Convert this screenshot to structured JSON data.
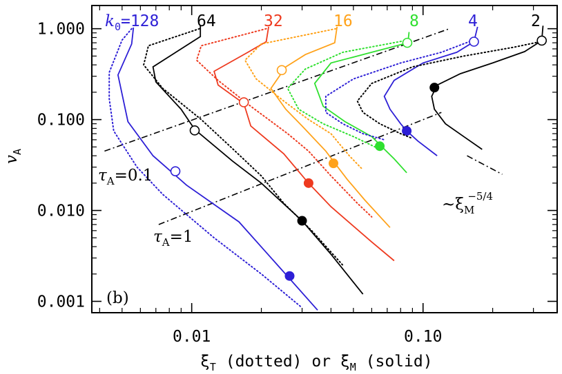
{
  "chart_data": {
    "type": "line",
    "xlabel": {
      "main": "ξ",
      "sub": "T",
      "rest": " (dotted) or ξ",
      "sub2": "M",
      "rest2": " (solid)"
    },
    "ylabel": {
      "main": "v",
      "sub": "A"
    },
    "x_scale": "log",
    "y_scale": "log",
    "xlim": [
      0.0037,
      0.38
    ],
    "ylim": [
      0.00075,
      1.8
    ],
    "x_ticks": [
      {
        "value": 0.01,
        "label": "0.01"
      },
      {
        "value": 0.1,
        "label": "0.10"
      }
    ],
    "y_ticks": [
      {
        "value": 0.001,
        "label": "0.001"
      },
      {
        "value": 0.01,
        "label": "0.010"
      },
      {
        "value": 0.1,
        "label": "0.100"
      },
      {
        "value": 1.0,
        "label": "1.000"
      }
    ],
    "panel_label": "(b)",
    "k_prefix": {
      "main": "k",
      "sub": "0",
      "eq": "="
    },
    "series": [
      {
        "k": "128",
        "color": "#2d1fd6",
        "solid": [
          [
            0.0056,
            1.03
          ],
          [
            0.0055,
            0.68
          ],
          [
            0.0048,
            0.31
          ],
          [
            0.0053,
            0.095
          ],
          [
            0.0068,
            0.04
          ],
          [
            0.0095,
            0.019
          ],
          [
            0.016,
            0.0075
          ],
          [
            0.025,
            0.0021
          ],
          [
            0.035,
            0.0008
          ]
        ],
        "dotted": [
          [
            0.0055,
            1.0
          ],
          [
            0.005,
            0.75
          ],
          [
            0.0044,
            0.33
          ],
          [
            0.0044,
            0.17
          ],
          [
            0.0046,
            0.075
          ],
          [
            0.0058,
            0.03
          ],
          [
            0.0075,
            0.015
          ],
          [
            0.0125,
            0.005
          ],
          [
            0.02,
            0.002
          ],
          [
            0.03,
            0.00085
          ]
        ],
        "open": [
          0.0085,
          0.027
        ],
        "filled": [
          0.0265,
          0.0019
        ]
      },
      {
        "k": "64",
        "color": "#000000",
        "solid": [
          [
            0.0109,
            1.08
          ],
          [
            0.0109,
            0.82
          ],
          [
            0.0068,
            0.38
          ],
          [
            0.007,
            0.26
          ],
          [
            0.009,
            0.13
          ],
          [
            0.0103,
            0.078
          ],
          [
            0.015,
            0.035
          ],
          [
            0.02,
            0.02
          ],
          [
            0.03,
            0.0077
          ],
          [
            0.04,
            0.0033
          ],
          [
            0.055,
            0.0012
          ]
        ],
        "dotted": [
          [
            0.0108,
            1.0
          ],
          [
            0.0065,
            0.65
          ],
          [
            0.0062,
            0.4
          ],
          [
            0.0075,
            0.22
          ],
          [
            0.011,
            0.1
          ],
          [
            0.015,
            0.048
          ],
          [
            0.02,
            0.024
          ],
          [
            0.025,
            0.012
          ],
          [
            0.033,
            0.006
          ],
          [
            0.045,
            0.0025
          ]
        ],
        "open": [
          0.0103,
          0.076
        ],
        "filled": [
          0.03,
          0.0077
        ]
      },
      {
        "k": "32",
        "color": "#ee3a1f",
        "solid": [
          [
            0.0215,
            1.05
          ],
          [
            0.021,
            0.72
          ],
          [
            0.0175,
            0.55
          ],
          [
            0.0125,
            0.34
          ],
          [
            0.013,
            0.24
          ],
          [
            0.0168,
            0.15
          ],
          [
            0.018,
            0.085
          ],
          [
            0.025,
            0.042
          ],
          [
            0.032,
            0.02
          ],
          [
            0.04,
            0.011
          ],
          [
            0.06,
            0.0045
          ],
          [
            0.075,
            0.0028
          ]
        ],
        "dotted": [
          [
            0.021,
            1.0
          ],
          [
            0.011,
            0.65
          ],
          [
            0.0105,
            0.45
          ],
          [
            0.013,
            0.27
          ],
          [
            0.018,
            0.14
          ],
          [
            0.026,
            0.07
          ],
          [
            0.032,
            0.045
          ],
          [
            0.04,
            0.024
          ],
          [
            0.052,
            0.012
          ],
          [
            0.06,
            0.0085
          ]
        ],
        "open": [
          0.0168,
          0.155
        ],
        "filled": [
          0.032,
          0.02
        ]
      },
      {
        "k": "16",
        "color": "#ffa21a",
        "solid": [
          [
            0.0425,
            1.05
          ],
          [
            0.0415,
            0.7
          ],
          [
            0.031,
            0.52
          ],
          [
            0.0255,
            0.38
          ],
          [
            0.022,
            0.22
          ],
          [
            0.0255,
            0.13
          ],
          [
            0.03,
            0.085
          ],
          [
            0.038,
            0.045
          ],
          [
            0.042,
            0.032
          ],
          [
            0.047,
            0.022
          ],
          [
            0.056,
            0.013
          ],
          [
            0.072,
            0.0065
          ]
        ],
        "dotted": [
          [
            0.042,
            1.0
          ],
          [
            0.02,
            0.68
          ],
          [
            0.017,
            0.45
          ],
          [
            0.019,
            0.28
          ],
          [
            0.025,
            0.16
          ],
          [
            0.032,
            0.1
          ],
          [
            0.04,
            0.07
          ],
          [
            0.048,
            0.04
          ],
          [
            0.055,
            0.028
          ]
        ],
        "open": [
          0.0245,
          0.35
        ],
        "filled": [
          0.041,
          0.033
        ]
      },
      {
        "k": "8",
        "color": "#2fe02f",
        "solid": [
          [
            0.087,
            0.92
          ],
          [
            0.086,
            0.7
          ],
          [
            0.06,
            0.55
          ],
          [
            0.04,
            0.42
          ],
          [
            0.034,
            0.25
          ],
          [
            0.037,
            0.14
          ],
          [
            0.046,
            0.095
          ],
          [
            0.06,
            0.065
          ],
          [
            0.066,
            0.051
          ],
          [
            0.075,
            0.037
          ],
          [
            0.085,
            0.026
          ]
        ],
        "dotted": [
          [
            0.086,
            0.75
          ],
          [
            0.045,
            0.55
          ],
          [
            0.031,
            0.36
          ],
          [
            0.026,
            0.22
          ],
          [
            0.029,
            0.13
          ],
          [
            0.037,
            0.09
          ],
          [
            0.05,
            0.065
          ],
          [
            0.062,
            0.05
          ]
        ],
        "open": [
          0.0855,
          0.7
        ],
        "filled": [
          0.065,
          0.051
        ]
      },
      {
        "k": "4",
        "color": "#2d1fd6",
        "solid": [
          [
            0.172,
            1.05
          ],
          [
            0.166,
            0.72
          ],
          [
            0.14,
            0.55
          ],
          [
            0.1,
            0.42
          ],
          [
            0.075,
            0.27
          ],
          [
            0.068,
            0.18
          ],
          [
            0.072,
            0.13
          ],
          [
            0.08,
            0.09
          ],
          [
            0.085,
            0.075
          ],
          [
            0.095,
            0.058
          ],
          [
            0.115,
            0.04
          ]
        ],
        "dotted": [
          [
            0.165,
            0.75
          ],
          [
            0.12,
            0.55
          ],
          [
            0.08,
            0.42
          ],
          [
            0.05,
            0.28
          ],
          [
            0.038,
            0.18
          ],
          [
            0.038,
            0.12
          ],
          [
            0.045,
            0.09
          ],
          [
            0.055,
            0.07
          ],
          [
            0.068,
            0.06
          ]
        ],
        "open": [
          0.166,
          0.72
        ],
        "filled": [
          0.085,
          0.075
        ]
      },
      {
        "k": "2",
        "color": "#000000",
        "solid": [
          [
            0.33,
            1.08
          ],
          [
            0.326,
            0.74
          ],
          [
            0.275,
            0.56
          ],
          [
            0.2,
            0.42
          ],
          [
            0.145,
            0.32
          ],
          [
            0.115,
            0.24
          ],
          [
            0.109,
            0.18
          ],
          [
            0.112,
            0.13
          ],
          [
            0.125,
            0.09
          ],
          [
            0.15,
            0.065
          ],
          [
            0.18,
            0.047
          ]
        ],
        "dotted": [
          [
            0.33,
            0.73
          ],
          [
            0.25,
            0.63
          ],
          [
            0.15,
            0.5
          ],
          [
            0.09,
            0.38
          ],
          [
            0.06,
            0.25
          ],
          [
            0.052,
            0.16
          ],
          [
            0.055,
            0.12
          ],
          [
            0.065,
            0.09
          ],
          [
            0.08,
            0.07
          ],
          [
            0.09,
            0.062
          ]
        ],
        "open": [
          0.326,
          0.74
        ],
        "filled": [
          0.112,
          0.225
        ]
      }
    ],
    "reference_lines": [
      {
        "name": "tau_A=0.1",
        "points": [
          [
            0.0042,
            0.045
          ],
          [
            0.13,
            1.0
          ]
        ]
      },
      {
        "name": "tau_A=1",
        "points": [
          [
            0.0072,
            0.007
          ],
          [
            0.12,
            0.12
          ]
        ]
      },
      {
        "name": "xi_M^-5/4",
        "points": [
          [
            0.155,
            0.04
          ],
          [
            0.22,
            0.025
          ]
        ]
      }
    ],
    "annotations": {
      "tau01": {
        "symbol": "τ",
        "sub": "A",
        "rest": "=0.1"
      },
      "tau1": {
        "symbol": "τ",
        "sub": "A",
        "rest": "=1"
      },
      "slope": {
        "tilde": "~ξ",
        "sub": "M",
        "sup": "−5/4"
      }
    }
  }
}
